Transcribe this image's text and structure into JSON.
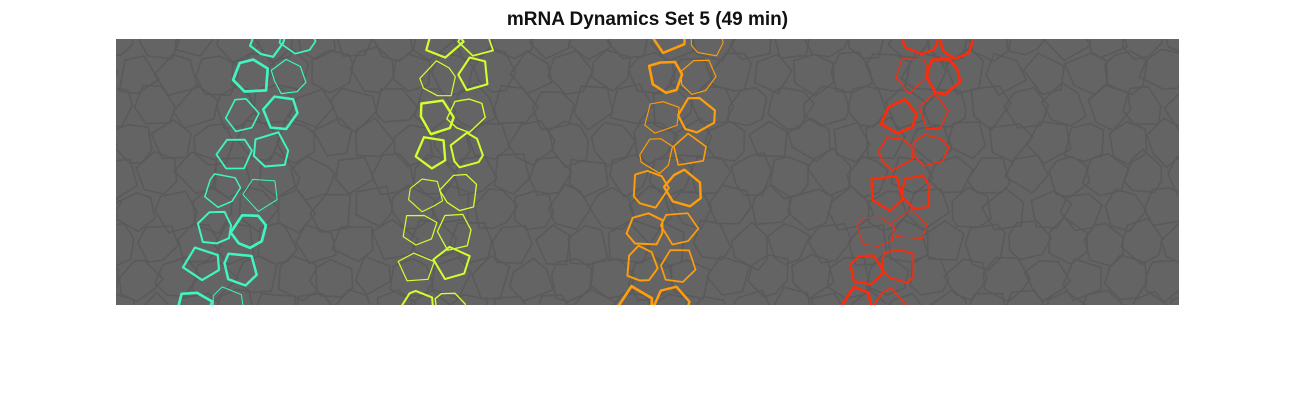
{
  "figure": {
    "title": "mRNA Dynamics Set 5 (49 min)"
  },
  "image": {
    "background_color": "#646464",
    "cell_edge_color": "#5a5a5a",
    "stripes": [
      {
        "color_name": "aquamarine",
        "color": "#3ff5c0"
      },
      {
        "color_name": "yellow-green",
        "color": "#d3ff2e"
      },
      {
        "color_name": "orange",
        "color": "#ff9d0a"
      },
      {
        "color_name": "red",
        "color": "#ff2a0a"
      }
    ]
  }
}
